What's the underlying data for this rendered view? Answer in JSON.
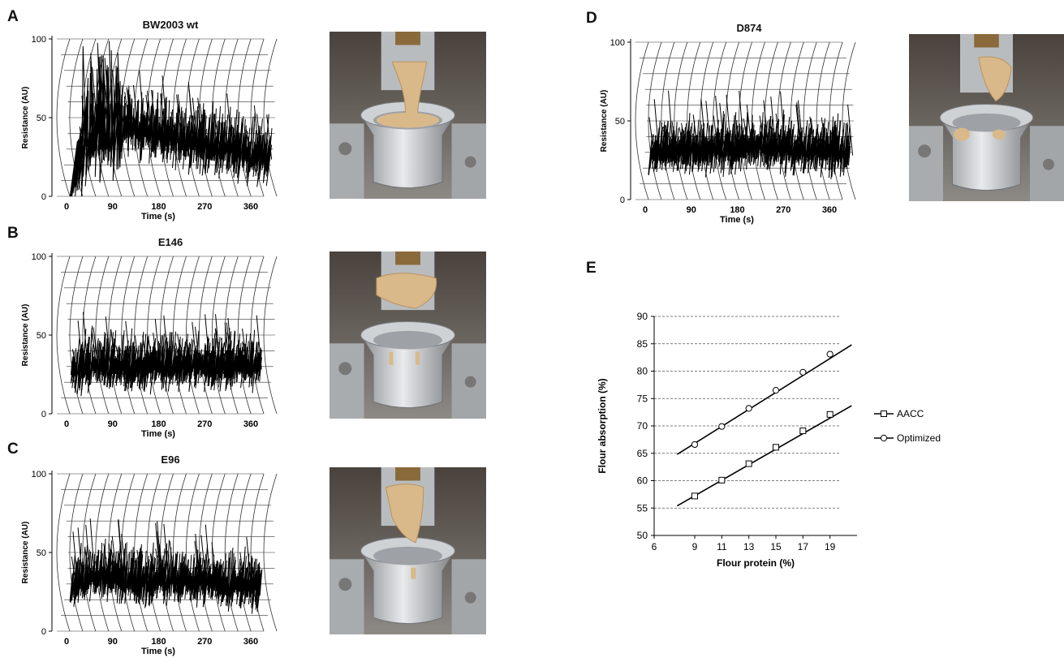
{
  "panels": {
    "A": {
      "letter": "A",
      "title": "BW2003 wt"
    },
    "B": {
      "letter": "B",
      "title": "E146"
    },
    "C": {
      "letter": "C",
      "title": "E96"
    },
    "D": {
      "letter": "D",
      "title": "D874"
    },
    "E": {
      "letter": "E"
    }
  },
  "mixograph_axes": {
    "ylabel": "Resistance (AU)",
    "xlabel": "Time (s)",
    "yticks": [
      "0",
      "50",
      "100"
    ],
    "xticks": [
      "0",
      "90",
      "180",
      "270",
      "360"
    ]
  },
  "colors": {
    "trace": "#000000",
    "grid": "#333333",
    "gridline_dashed": "#555555"
  },
  "chart_data": [
    {
      "type": "line",
      "title": "BW2003 wt",
      "xlabel": "Time (s)",
      "ylabel": "Resistance (AU)",
      "ylim": [
        0,
        100
      ],
      "x": [
        0,
        30,
        60,
        90,
        120,
        150,
        180,
        210,
        240,
        270,
        300,
        330,
        360,
        390,
        420
      ],
      "series": [
        {
          "values": [
            0,
            45,
            55,
            50,
            46,
            44,
            42,
            40,
            38,
            36,
            34,
            32,
            30,
            28,
            26
          ]
        }
      ]
    },
    {
      "type": "line",
      "title": "E146",
      "xlabel": "Time (s)",
      "ylabel": "Resistance (AU)",
      "ylim": [
        0,
        100
      ],
      "x": [
        0,
        30,
        60,
        90,
        120,
        150,
        180,
        210,
        240,
        270,
        300,
        330,
        360,
        390,
        420
      ],
      "series": [
        {
          "values": [
            30,
            33,
            34,
            33,
            32,
            33,
            34,
            33,
            34,
            33,
            33,
            34,
            33,
            34,
            34
          ]
        }
      ]
    },
    {
      "type": "line",
      "title": "E96",
      "xlabel": "Time (s)",
      "ylabel": "Resistance (AU)",
      "ylim": [
        0,
        100
      ],
      "x": [
        0,
        30,
        60,
        90,
        120,
        150,
        180,
        210,
        240,
        270,
        300,
        330,
        360,
        390,
        420
      ],
      "series": [
        {
          "values": [
            32,
            36,
            38,
            37,
            36,
            35,
            36,
            35,
            34,
            35,
            33,
            32,
            31,
            30,
            30
          ]
        }
      ]
    },
    {
      "type": "line",
      "title": "D874",
      "xlabel": "Time (s)",
      "ylabel": "Resistance (AU)",
      "ylim": [
        0,
        100
      ],
      "x": [
        0,
        30,
        60,
        90,
        120,
        150,
        180,
        210,
        240,
        270,
        300,
        330,
        360,
        390,
        420
      ],
      "series": [
        {
          "values": [
            32,
            34,
            35,
            34,
            34,
            35,
            36,
            37,
            36,
            35,
            34,
            34,
            33,
            33,
            33
          ]
        }
      ]
    },
    {
      "type": "line",
      "title": "",
      "xlabel": "Flour protein (%)",
      "ylabel": "Flour absorption (%)",
      "xlim": [
        6,
        21
      ],
      "ylim": [
        50,
        90
      ],
      "xticks": [
        6,
        9,
        11,
        13,
        15,
        17,
        19
      ],
      "yticks": [
        50,
        55,
        60,
        65,
        70,
        75,
        80,
        85,
        90
      ],
      "legend": "right",
      "series": [
        {
          "name": "AACC",
          "marker": "square",
          "points": [
            [
              9,
              57.2
            ],
            [
              11,
              60.1
            ],
            [
              13,
              63.1
            ],
            [
              15,
              66.1
            ],
            [
              17,
              69.1
            ],
            [
              19,
              72.1
            ]
          ],
          "fit_line": [
            [
              7.7,
              55.4
            ],
            [
              20.6,
              73.7
            ]
          ]
        },
        {
          "name": "Optimized",
          "marker": "circle",
          "points": [
            [
              9,
              66.6
            ],
            [
              11,
              69.9
            ],
            [
              13,
              73.2
            ],
            [
              15,
              76.5
            ],
            [
              17,
              79.8
            ],
            [
              19,
              83.1
            ]
          ],
          "fit_line": [
            [
              7.7,
              64.8
            ],
            [
              20.6,
              84.8
            ]
          ]
        }
      ]
    }
  ],
  "chartE": {
    "xlabel": "Flour protein (%)",
    "ylabel": "Flour absorption (%)",
    "legend": [
      {
        "label": "AACC"
      },
      {
        "label": "Optimized"
      }
    ]
  }
}
